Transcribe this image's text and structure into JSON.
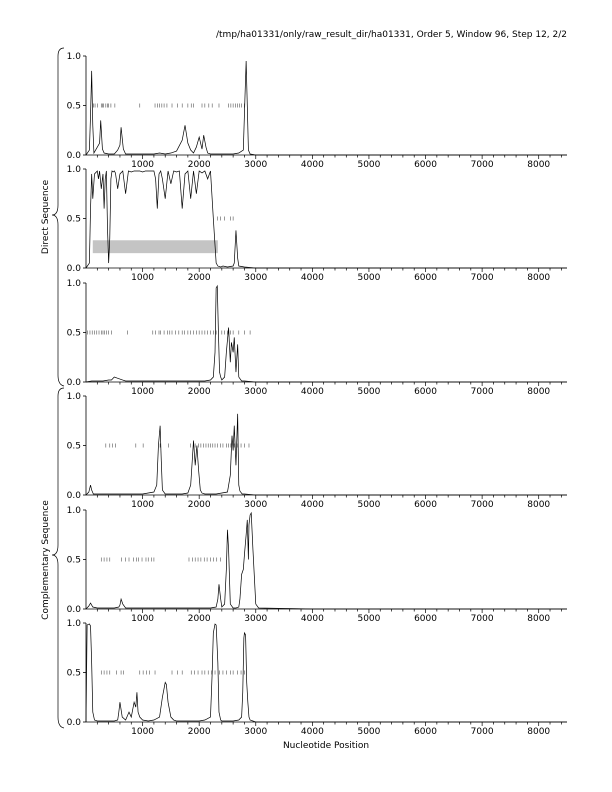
{
  "header": {
    "path_text": "/tmp/ha01331/only/raw_result_dir/ha01331, Order 5, Window 96, Step 12, 2/2"
  },
  "strand_labels": {
    "direct": "Direct Sequence",
    "complementary": "Complementary Sequence"
  },
  "x_axis_label": "Nucleotide Position",
  "colors": {
    "line": "#000000",
    "axis": "#000000",
    "shaded_region": "#c4c4c4",
    "background": "#ffffff"
  },
  "chart_data": {
    "type": "line",
    "xlabel": "Nucleotide Position",
    "xlim": [
      0,
      8500
    ],
    "ylim": [
      0,
      1
    ],
    "x_ticks": [
      1000,
      2000,
      3000,
      4000,
      5000,
      6000,
      7000,
      8000
    ],
    "x_tick_labels": [
      "1000",
      "2000",
      "3000",
      "4000",
      "5000",
      "6000",
      "7000",
      "8000"
    ],
    "y_ticks": [
      0.0,
      0.5,
      1.0
    ],
    "y_tick_labels": [
      "0.0",
      "0.5",
      "1.0"
    ],
    "panels": [
      {
        "strand": "direct",
        "frame": 1,
        "series": [
          {
            "x": [
              0,
              60,
              80,
              100,
              120,
              140,
              170,
              200,
              240,
              260,
              290,
              320,
              400,
              500,
              560,
              600,
              620,
              660,
              700,
              800,
              900,
              1000,
              1100,
              1200,
              1300,
              1400,
              1500,
              1600,
              1700,
              1750,
              1800,
              1850,
              1900,
              1950,
              2000,
              2050,
              2080,
              2120,
              2150,
              2200,
              2250,
              2300,
              2400,
              2500,
              2600,
              2700,
              2780,
              2810,
              2830,
              2850,
              2870,
              2900,
              3000,
              4000,
              5000,
              6000,
              7000,
              8000,
              8500
            ],
            "y": [
              0,
              0.05,
              0.4,
              0.85,
              0.3,
              0.02,
              0.05,
              0.08,
              0.12,
              0.35,
              0.06,
              0.02,
              0.01,
              0.01,
              0.05,
              0.1,
              0.28,
              0.06,
              0.01,
              0.01,
              0.01,
              0.01,
              0.01,
              0.01,
              0.02,
              0.01,
              0.02,
              0.04,
              0.15,
              0.3,
              0.12,
              0.05,
              0.02,
              0.08,
              0.18,
              0.06,
              0.2,
              0.08,
              0.02,
              0.01,
              0.01,
              0.01,
              0.01,
              0.01,
              0.01,
              0.02,
              0.05,
              0.6,
              0.95,
              0.5,
              0.05,
              0.01,
              0,
              0,
              0,
              0,
              0,
              0,
              0
            ]
          }
        ],
        "markers_x": [
          130,
          160,
          200,
          270,
          290,
          310,
          350,
          380,
          400,
          440,
          510,
          950,
          1220,
          1260,
          1300,
          1340,
          1380,
          1430,
          1520,
          1620,
          1700,
          1800,
          1860,
          1900,
          2050,
          2100,
          2170,
          2230,
          2350,
          2520,
          2560,
          2600,
          2640,
          2680,
          2710,
          2750,
          2800
        ],
        "shaded_region": null
      },
      {
        "strand": "direct",
        "frame": 2,
        "series": [
          {
            "x": [
              0,
              60,
              80,
              100,
              120,
              150,
              200,
              220,
              240,
              270,
              300,
              320,
              340,
              360,
              380,
              400,
              420,
              440,
              460,
              480,
              500,
              520,
              560,
              600,
              650,
              700,
              750,
              800,
              850,
              900,
              950,
              1000,
              1050,
              1100,
              1150,
              1200,
              1230,
              1260,
              1290,
              1320,
              1350,
              1400,
              1450,
              1500,
              1550,
              1600,
              1650,
              1700,
              1750,
              1800,
              1850,
              1900,
              1950,
              2000,
              2050,
              2100,
              2150,
              2200,
              2250,
              2300,
              2330,
              2380,
              2420,
              2500,
              2600,
              2620,
              2650,
              2680,
              2700,
              2800,
              3000,
              4000,
              5000,
              6000,
              7000,
              8000,
              8500
            ],
            "y": [
              0,
              0.05,
              0.6,
              0.95,
              0.7,
              0.95,
              0.98,
              0.9,
              0.98,
              0.8,
              0.95,
              0.6,
              0.9,
              0.98,
              0.4,
              0.05,
              0.3,
              0.9,
              0.98,
              0.97,
              0.98,
              0.96,
              0.8,
              0.95,
              0.98,
              0.75,
              0.98,
              0.97,
              0.98,
              0.98,
              0.98,
              0.97,
              0.98,
              0.98,
              0.98,
              0.98,
              0.9,
              0.6,
              0.95,
              0.98,
              0.9,
              0.7,
              0.98,
              0.85,
              0.98,
              0.97,
              0.98,
              0.6,
              0.95,
              0.98,
              0.7,
              0.98,
              0.75,
              0.98,
              0.96,
              0.98,
              0.9,
              0.98,
              0.5,
              0.05,
              0.02,
              0.01,
              0.02,
              0.01,
              0.02,
              0.05,
              0.38,
              0.1,
              0.02,
              0.01,
              0,
              0,
              0,
              0,
              0,
              0,
              0
            ]
          }
        ],
        "markers_x": [
          2320,
          2380,
          2450,
          2550,
          2600
        ],
        "shaded_region": {
          "x_start": 120,
          "x_end": 2330,
          "y_start": 0.15,
          "y_end": 0.28
        }
      },
      {
        "strand": "direct",
        "frame": 3,
        "series": [
          {
            "x": [
              0,
              100,
              200,
              300,
              400,
              450,
              500,
              550,
              600,
              650,
              700,
              800,
              900,
              1000,
              1200,
              1400,
              1600,
              1800,
              2000,
              2100,
              2200,
              2250,
              2280,
              2300,
              2320,
              2340,
              2360,
              2380,
              2400,
              2450,
              2480,
              2520,
              2550,
              2570,
              2600,
              2620,
              2650,
              2680,
              2700,
              2750,
              2800,
              3000,
              4000,
              5000,
              6000,
              7000,
              8000,
              8500
            ],
            "y": [
              0,
              0.01,
              0.01,
              0.01,
              0.02,
              0.02,
              0.05,
              0.04,
              0.03,
              0.02,
              0.01,
              0.01,
              0.01,
              0.01,
              0.01,
              0.01,
              0.01,
              0.01,
              0.01,
              0.01,
              0.02,
              0.05,
              0.3,
              0.95,
              0.97,
              0.5,
              0.1,
              0.05,
              0.02,
              0.05,
              0.3,
              0.55,
              0.2,
              0.4,
              0.3,
              0.45,
              0.1,
              0.38,
              0.05,
              0.01,
              0.01,
              0,
              0,
              0,
              0,
              0,
              0,
              0
            ]
          }
        ],
        "markers_x": [
          30,
          70,
          110,
          150,
          190,
          230,
          270,
          300,
          330,
          360,
          400,
          450,
          730,
          1180,
          1230,
          1290,
          1320,
          1380,
          1440,
          1480,
          1520,
          1580,
          1640,
          1700,
          1740,
          1800,
          1850,
          1900,
          1950,
          2000,
          2050,
          2100,
          2150,
          2200,
          2250,
          2300,
          2400,
          2450,
          2500,
          2550,
          2600,
          2700,
          2800,
          2900
        ],
        "shaded_region": null
      },
      {
        "strand": "complementary",
        "frame": 1,
        "series": [
          {
            "x": [
              0,
              50,
              80,
              100,
              130,
              200,
              300,
              400,
              500,
              600,
              700,
              800,
              900,
              1000,
              1100,
              1200,
              1250,
              1280,
              1310,
              1330,
              1350,
              1400,
              1500,
              1600,
              1700,
              1800,
              1850,
              1900,
              1930,
              1960,
              1990,
              2020,
              2050,
              2100,
              2200,
              2300,
              2400,
              2500,
              2550,
              2580,
              2600,
              2620,
              2650,
              2680,
              2700,
              2720,
              2760,
              2800,
              3000,
              4000,
              5000,
              6000,
              7000,
              8000,
              8500
            ],
            "y": [
              0,
              0.03,
              0.1,
              0.05,
              0.01,
              0.01,
              0.01,
              0.01,
              0.01,
              0.01,
              0.01,
              0.01,
              0.01,
              0.01,
              0.02,
              0.03,
              0.1,
              0.5,
              0.7,
              0.35,
              0.05,
              0.01,
              0.01,
              0.01,
              0.01,
              0.02,
              0.1,
              0.55,
              0.3,
              0.5,
              0.25,
              0.05,
              0.02,
              0.01,
              0.01,
              0.01,
              0.02,
              0.03,
              0.2,
              0.6,
              0.45,
              0.7,
              0.3,
              0.82,
              0.1,
              0.04,
              0.01,
              0.01,
              0,
              0,
              0,
              0,
              0,
              0,
              0
            ]
          }
        ],
        "markers_x": [
          350,
          420,
          470,
          520,
          880,
          1010,
          1310,
          1460,
          1850,
          1930,
          1990,
          2030,
          2080,
          2120,
          2160,
          2200,
          2240,
          2280,
          2320,
          2380,
          2420,
          2480,
          2520,
          2560,
          2620,
          2680,
          2740,
          2800,
          2880
        ],
        "shaded_region": null
      },
      {
        "strand": "complementary",
        "frame": 2,
        "series": [
          {
            "x": [
              0,
              50,
              80,
              120,
              200,
              300,
              400,
              500,
              580,
              600,
              620,
              650,
              700,
              800,
              900,
              1000,
              1200,
              1400,
              1600,
              1800,
              2000,
              2200,
              2300,
              2330,
              2350,
              2380,
              2400,
              2450,
              2480,
              2500,
              2520,
              2550,
              2600,
              2650,
              2700,
              2720,
              2750,
              2780,
              2800,
              2830,
              2850,
              2870,
              2880,
              2900,
              2920,
              2950,
              3000,
              3050,
              4000,
              5000,
              6000,
              7000,
              8000,
              8500
            ],
            "y": [
              0,
              0.03,
              0.06,
              0.02,
              0.01,
              0.01,
              0.01,
              0.01,
              0.02,
              0.04,
              0.1,
              0.05,
              0.01,
              0.01,
              0.01,
              0.01,
              0.01,
              0.01,
              0.01,
              0.01,
              0.01,
              0.01,
              0.02,
              0.1,
              0.25,
              0.1,
              0.02,
              0.05,
              0.4,
              0.8,
              0.6,
              0.05,
              0.01,
              0.01,
              0.02,
              0.1,
              0.35,
              0.4,
              0.55,
              0.75,
              0.9,
              0.5,
              0.85,
              0.95,
              0.97,
              0.6,
              0.05,
              0.01,
              0,
              0,
              0,
              0,
              0,
              0
            ]
          }
        ],
        "markers_x": [
          270,
          320,
          370,
          420,
          630,
          700,
          760,
          840,
          890,
          930,
          990,
          1060,
          1100,
          1160,
          1200,
          1820,
          1880,
          1930,
          1980,
          2030,
          2090,
          2140,
          2200,
          2250,
          2310,
          2380
        ],
        "shaded_region": null
      },
      {
        "strand": "complementary",
        "frame": 3,
        "series": [
          {
            "x": [
              0,
              20,
              60,
              80,
              100,
              120,
              150,
              200,
              300,
              400,
              500,
              560,
              580,
              600,
              640,
              700,
              760,
              800,
              850,
              880,
              900,
              920,
              950,
              1000,
              1100,
              1200,
              1300,
              1350,
              1400,
              1420,
              1450,
              1500,
              1550,
              1600,
              1700,
              1800,
              1900,
              2000,
              2100,
              2200,
              2230,
              2250,
              2280,
              2300,
              2330,
              2350,
              2380,
              2400,
              2500,
              2600,
              2700,
              2750,
              2770,
              2790,
              2800,
              2820,
              2840,
              2860,
              2880,
              2900,
              2950,
              3000,
              4000,
              5000,
              6000,
              7000,
              8000,
              8500
            ],
            "y": [
              0,
              0.98,
              0.99,
              0.97,
              0.6,
              0.1,
              0.02,
              0.01,
              0.01,
              0.01,
              0.01,
              0.02,
              0.1,
              0.2,
              0.05,
              0.02,
              0.1,
              0.05,
              0.2,
              0.15,
              0.3,
              0.1,
              0.05,
              0.02,
              0.01,
              0.02,
              0.05,
              0.25,
              0.4,
              0.38,
              0.2,
              0.05,
              0.02,
              0.01,
              0.01,
              0.01,
              0.01,
              0.01,
              0.02,
              0.05,
              0.5,
              0.9,
              0.99,
              0.98,
              0.6,
              0.1,
              0.02,
              0.01,
              0.01,
              0.01,
              0.02,
              0.05,
              0.3,
              0.85,
              0.9,
              0.88,
              0.4,
              0.2,
              0.05,
              0.02,
              0.01,
              0,
              0,
              0,
              0,
              0,
              0,
              0
            ]
          }
        ],
        "markers_x": [
          270,
          320,
          370,
          420,
          540,
          620,
          660,
          950,
          1010,
          1070,
          1120,
          1220,
          1520,
          1620,
          1700,
          1860,
          1920,
          1980,
          2050,
          2100,
          2160,
          2220,
          2280,
          2360,
          2420,
          2480,
          2550,
          2600,
          2680,
          2740,
          2800
        ],
        "shaded_region": null
      }
    ]
  }
}
